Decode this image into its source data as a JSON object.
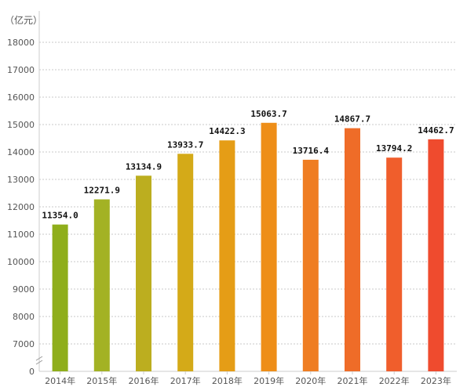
{
  "chart_data": {
    "type": "bar",
    "unit_label": "（亿元）",
    "categories": [
      "2014年",
      "2015年",
      "2016年",
      "2017年",
      "2018年",
      "2019年",
      "2020年",
      "2021年",
      "2022年",
      "2023年"
    ],
    "values": [
      11354.0,
      12271.9,
      13134.9,
      13933.7,
      14422.3,
      15063.7,
      13716.4,
      14867.7,
      13794.2,
      14462.7
    ],
    "value_labels": [
      "11354.0",
      "12271.9",
      "13134.9",
      "13933.7",
      "14422.3",
      "15063.7",
      "13716.4",
      "14867.7",
      "13794.2",
      "14462.7"
    ],
    "y_ticks": [
      "0",
      "7000",
      "8000",
      "9000",
      "10000",
      "11000",
      "12000",
      "13000",
      "14000",
      "15000",
      "16000",
      "17000",
      "18000"
    ],
    "y_tick_values": [
      0,
      7000,
      8000,
      9000,
      10000,
      11000,
      12000,
      13000,
      14000,
      15000,
      16000,
      17000,
      18000
    ],
    "axis_break": true,
    "grid": true,
    "bar_colors": [
      "#8fae1b",
      "#a3b224",
      "#bcae1f",
      "#d4aa18",
      "#e59d16",
      "#ee8e18",
      "#ef7d22",
      "#ef6c28",
      "#f05e2c",
      "#ef4b2e"
    ],
    "axis_color": "#cccccc"
  }
}
